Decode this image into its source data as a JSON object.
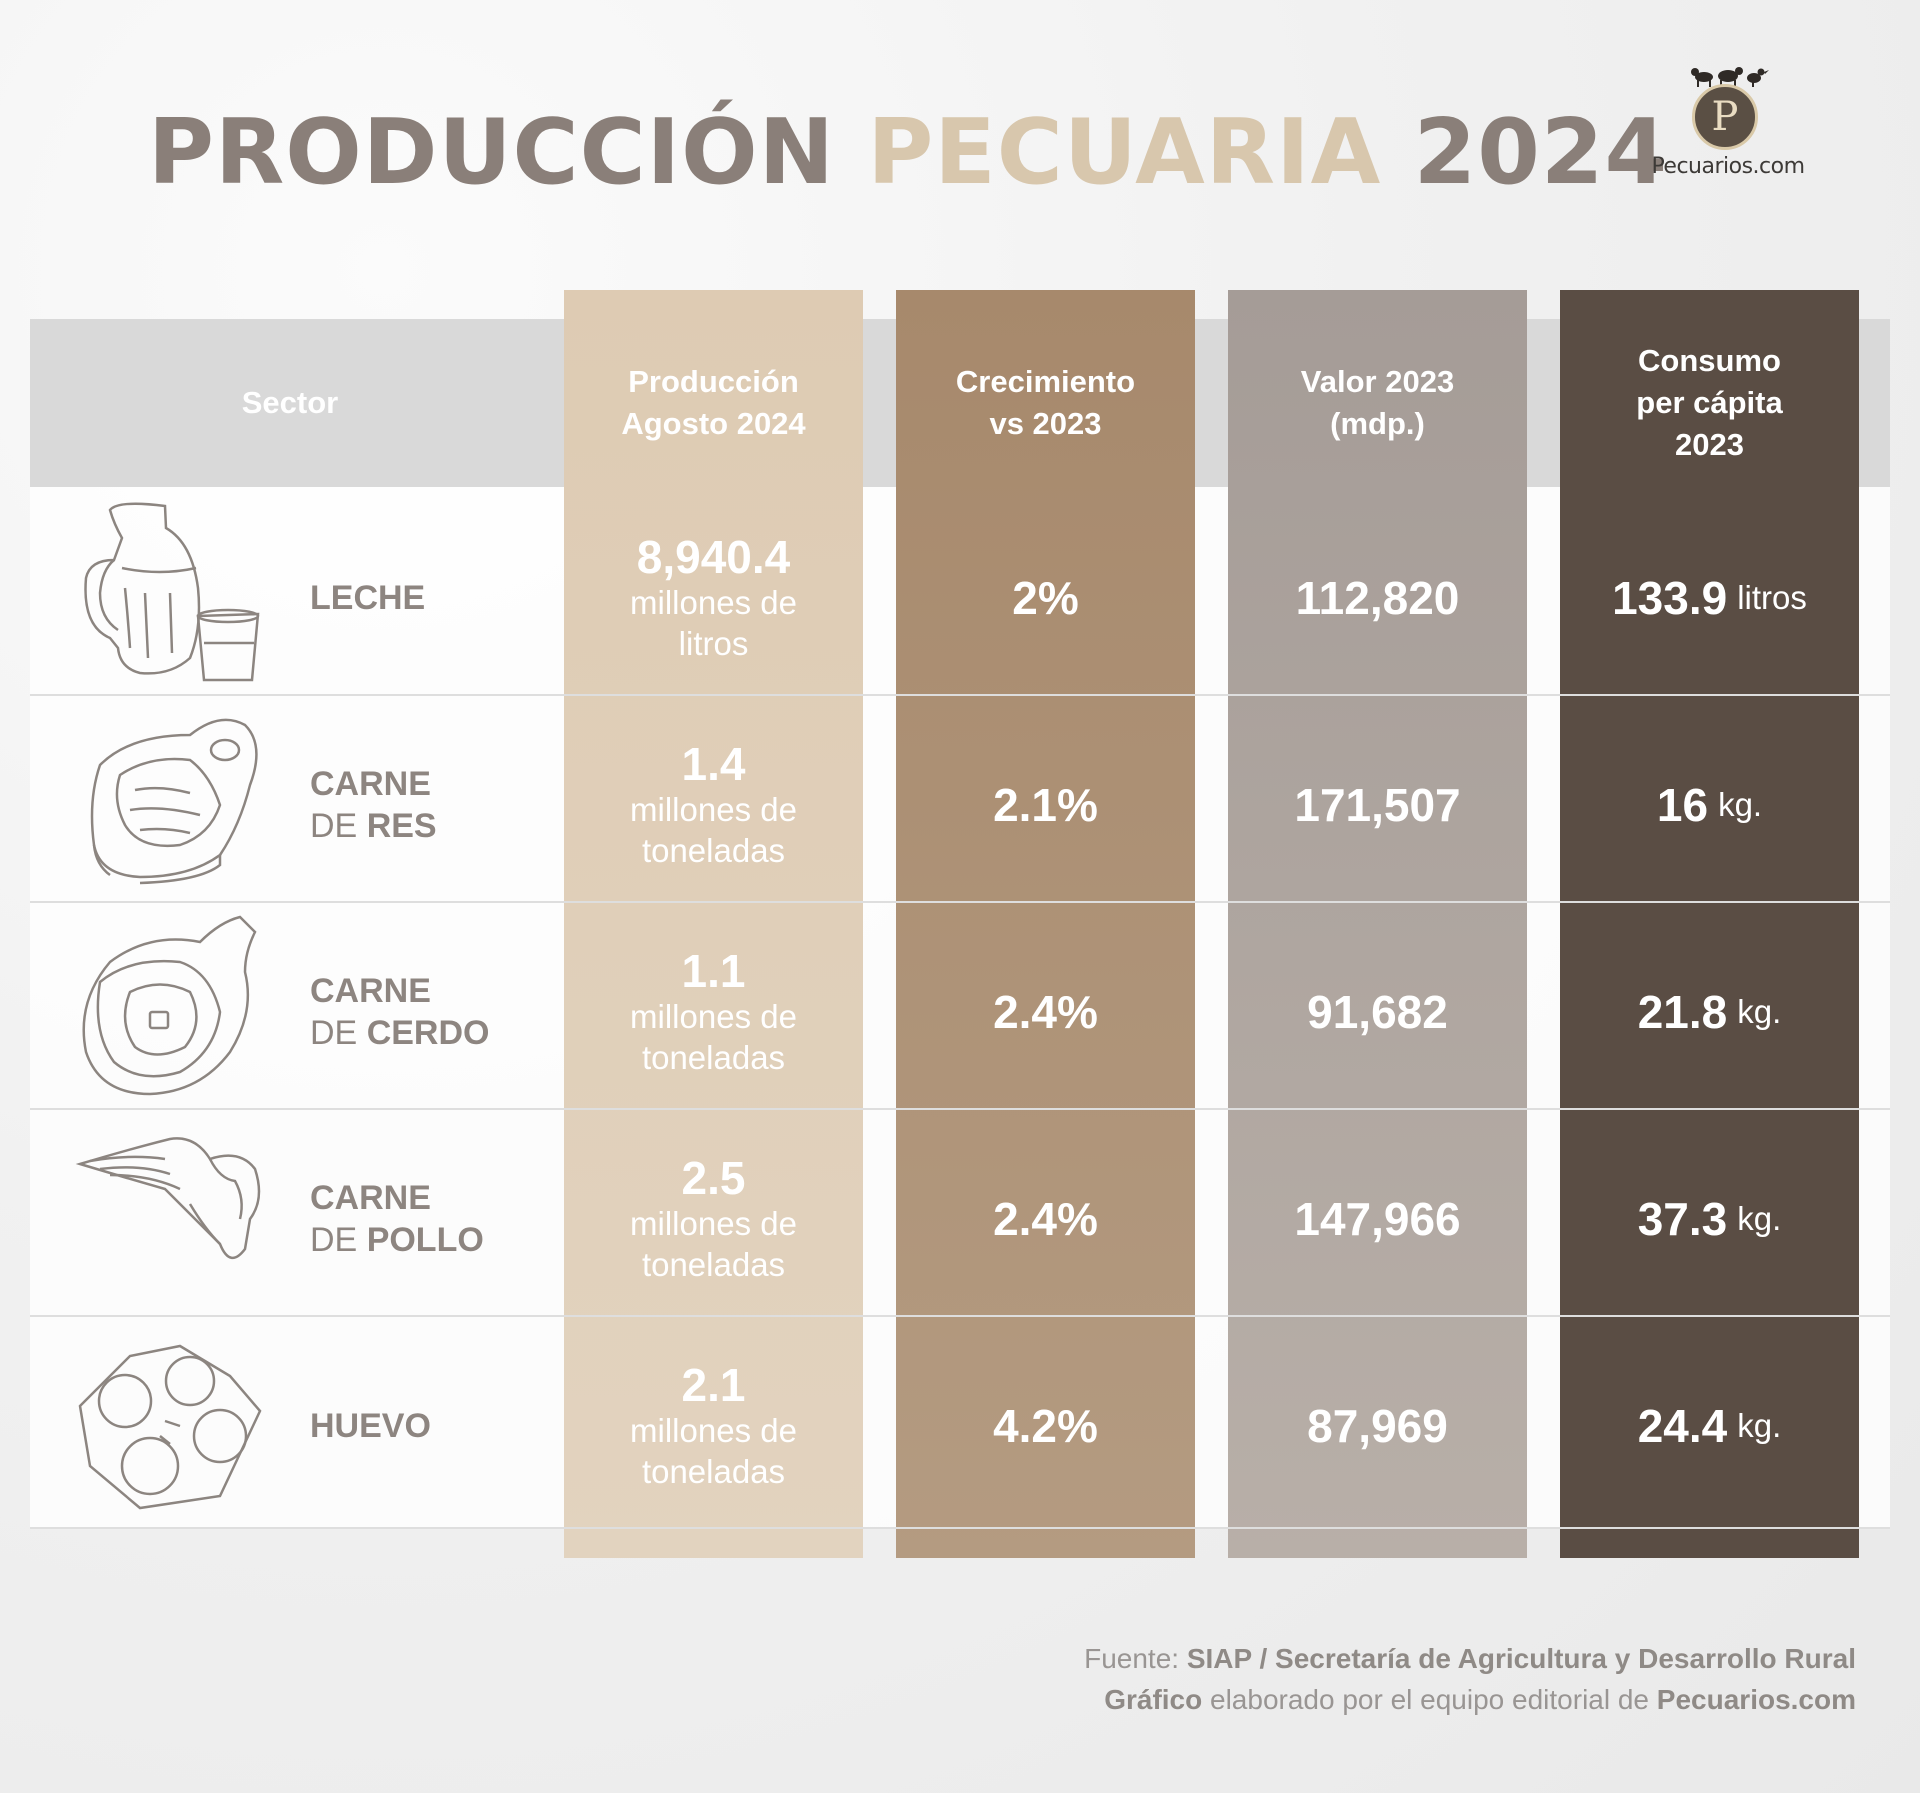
{
  "title": {
    "part1": "PRODUCCIÓN",
    "part2": "PECUARIA",
    "part3": "2024"
  },
  "logo": {
    "letter": "P",
    "text": "Pecuarios.com"
  },
  "headers": {
    "sector": "Sector",
    "produccion": "Producción\nAgosto 2024",
    "crecimiento": "Crecimiento\nvs 2023",
    "valor": "Valor 2023\n(mdp.)",
    "consumo": "Consumo\nper cápita\n2023"
  },
  "rows": [
    {
      "icon": "milk-jug-icon",
      "label_line1": "LECHE",
      "label_pre": "",
      "label_post": "",
      "prod_value": "8,940.4",
      "prod_unit": "millones de litros",
      "growth": "2%",
      "value": "112,820",
      "consumo_value": "133.9",
      "consumo_unit": "litros"
    },
    {
      "icon": "beef-steak-icon",
      "label_line1": "CARNE",
      "label_pre": "DE ",
      "label_post": "RES",
      "prod_value": "1.4",
      "prod_unit": "millones de toneladas",
      "growth": "2.1%",
      "value": "171,507",
      "consumo_value": "16",
      "consumo_unit": "kg."
    },
    {
      "icon": "ham-icon",
      "label_line1": "CARNE",
      "label_pre": "DE ",
      "label_post": "CERDO",
      "prod_value": "1.1",
      "prod_unit": "millones de toneladas",
      "growth": "2.4%",
      "value": "91,682",
      "consumo_value": "21.8",
      "consumo_unit": "kg."
    },
    {
      "icon": "chicken-wing-icon",
      "label_line1": "CARNE",
      "label_pre": "DE ",
      "label_post": "POLLO",
      "prod_value": "2.5",
      "prod_unit": "millones de toneladas",
      "growth": "2.4%",
      "value": "147,966",
      "consumo_value": "37.3",
      "consumo_unit": "kg."
    },
    {
      "icon": "egg-carton-icon",
      "label_line1": "HUEVO",
      "label_pre": "",
      "label_post": "",
      "prod_value": "2.1",
      "prod_unit": "millones de toneladas",
      "growth": "4.2%",
      "value": "87,969",
      "consumo_value": "24.4",
      "consumo_unit": "kg."
    }
  ],
  "footer": {
    "source_label": "Fuente: ",
    "source": "SIAP / Secretaría de Agricultura y Desarrollo Rural",
    "credit_bold": "Gráfico",
    "credit_text": " elaborado por el equipo editorial de ",
    "credit_site": "Pecuarios.com"
  },
  "colors": {
    "title_gray": "#8a7f79",
    "title_beige": "#d8c7ad",
    "col_produccion": "#decbb3",
    "col_crecimiento": "#a7896c",
    "col_valor": "#a59c97",
    "col_consumo": "#5a4d44"
  },
  "chart_data": {
    "type": "table",
    "title": "PRODUCCIÓN PECUARIA 2024",
    "columns": [
      "Sector",
      "Producción Agosto 2024",
      "Crecimiento vs 2023",
      "Valor 2023 (mdp.)",
      "Consumo per cápita 2023"
    ],
    "rows": [
      [
        "LECHE",
        "8,940.4 millones de litros",
        "2%",
        "112,820",
        "133.9 litros"
      ],
      [
        "CARNE DE RES",
        "1.4 millones de toneladas",
        "2.1%",
        "171,507",
        "16 kg."
      ],
      [
        "CARNE DE CERDO",
        "1.1 millones de toneladas",
        "2.4%",
        "91,682",
        "21.8 kg."
      ],
      [
        "CARNE DE POLLO",
        "2.5 millones de toneladas",
        "2.4%",
        "147,966",
        "37.3 kg."
      ],
      [
        "HUEVO",
        "2.1 millones de toneladas",
        "4.2%",
        "87,969",
        "24.4 kg."
      ]
    ]
  }
}
